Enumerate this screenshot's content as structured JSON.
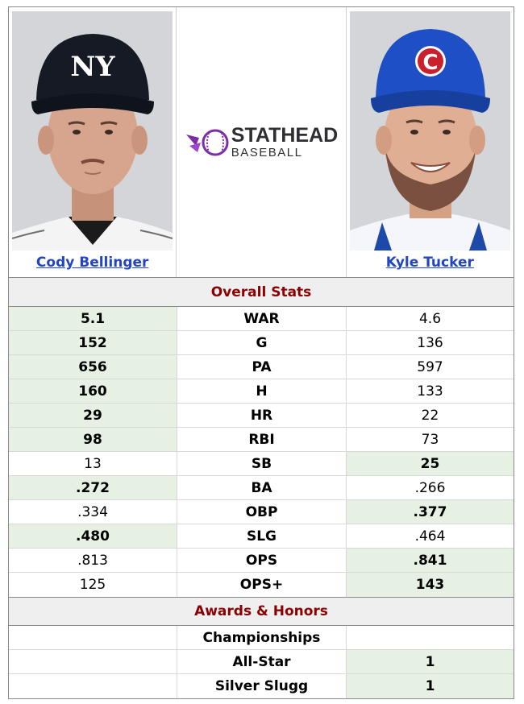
{
  "players": {
    "left": {
      "name": "Cody Bellinger",
      "photo_icon": "player-photo-yankees-cap"
    },
    "right": {
      "name": "Kyle Tucker",
      "photo_icon": "player-photo-cubs-cap"
    }
  },
  "logo": {
    "line1": "STATHEAD",
    "line2": "BASEBALL",
    "accent_color": "#7b2ea8"
  },
  "sections": {
    "overall": "Overall Stats",
    "awards": "Awards & Honors"
  },
  "colors": {
    "section_title": "#8b0000",
    "link": "#2245c2",
    "win_bg": "#e6f0e3"
  },
  "stats": [
    {
      "label": "WAR",
      "left": "5.1",
      "right": "4.6",
      "winner": "left"
    },
    {
      "label": "G",
      "left": "152",
      "right": "136",
      "winner": "left"
    },
    {
      "label": "PA",
      "left": "656",
      "right": "597",
      "winner": "left"
    },
    {
      "label": "H",
      "left": "160",
      "right": "133",
      "winner": "left"
    },
    {
      "label": "HR",
      "left": "29",
      "right": "22",
      "winner": "left"
    },
    {
      "label": "RBI",
      "left": "98",
      "right": "73",
      "winner": "left"
    },
    {
      "label": "SB",
      "left": "13",
      "right": "25",
      "winner": "right"
    },
    {
      "label": "BA",
      "left": ".272",
      "right": ".266",
      "winner": "left"
    },
    {
      "label": "OBP",
      "left": ".334",
      "right": ".377",
      "winner": "right"
    },
    {
      "label": "SLG",
      "left": ".480",
      "right": ".464",
      "winner": "left"
    },
    {
      "label": "OPS",
      "left": ".813",
      "right": ".841",
      "winner": "right"
    },
    {
      "label": "OPS+",
      "left": "125",
      "right": "143",
      "winner": "right"
    }
  ],
  "awards": [
    {
      "label": "Championships",
      "left": "",
      "right": "",
      "winner": "none"
    },
    {
      "label": "All-Star",
      "left": "",
      "right": "1",
      "winner": "right"
    },
    {
      "label": "Silver Slugg",
      "left": "",
      "right": "1",
      "winner": "right"
    }
  ]
}
